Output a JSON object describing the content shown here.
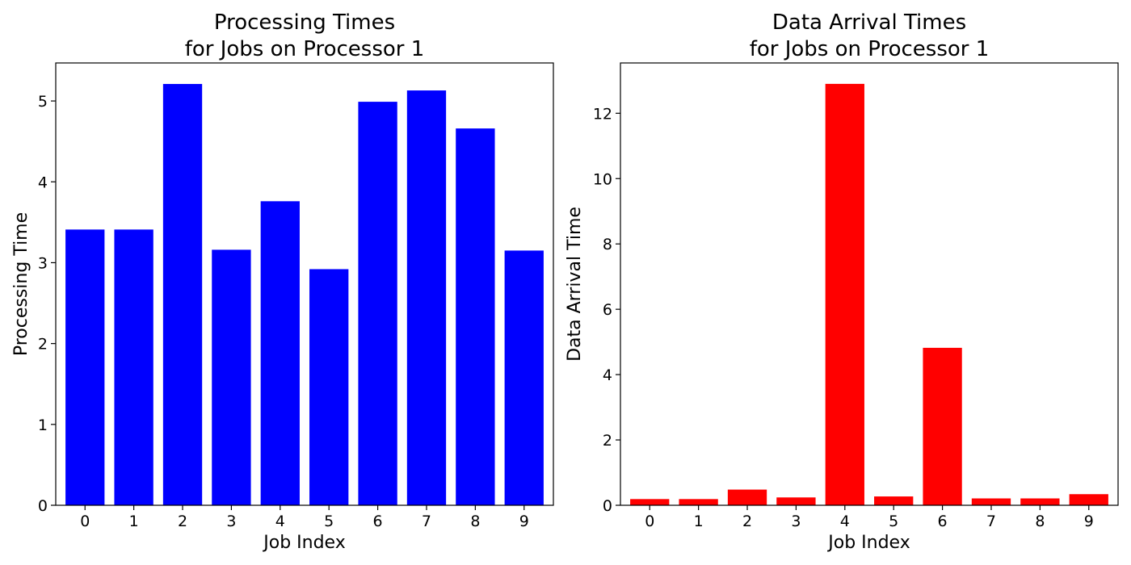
{
  "chart_data": [
    {
      "type": "bar",
      "title_lines": [
        "Processing Times",
        "for Jobs on Processor 1"
      ],
      "xlabel": "Job Index",
      "ylabel": "Processing Time",
      "categories": [
        "0",
        "1",
        "2",
        "3",
        "4",
        "5",
        "6",
        "7",
        "8",
        "9"
      ],
      "values": [
        3.41,
        3.41,
        5.21,
        3.16,
        3.76,
        2.92,
        4.99,
        5.13,
        4.66,
        3.15
      ],
      "ylim": [
        0,
        5.47
      ],
      "yticks": [
        0,
        1,
        2,
        3,
        4,
        5
      ],
      "ytick_labels": [
        "0",
        "1",
        "2",
        "3",
        "4",
        "5"
      ],
      "color": "#0000ff",
      "grid": false,
      "legend": false
    },
    {
      "type": "bar",
      "title_lines": [
        "Data Arrival Times",
        "for Jobs on Processor 1"
      ],
      "xlabel": "Job Index",
      "ylabel": "Data Arrival Time",
      "categories": [
        "0",
        "1",
        "2",
        "3",
        "4",
        "5",
        "6",
        "7",
        "8",
        "9"
      ],
      "values": [
        0.19,
        0.19,
        0.48,
        0.24,
        12.9,
        0.27,
        4.82,
        0.21,
        0.21,
        0.34
      ],
      "ylim": [
        0,
        13.54
      ],
      "yticks": [
        0,
        2,
        4,
        6,
        8,
        10,
        12
      ],
      "ytick_labels": [
        "0",
        "2",
        "4",
        "6",
        "8",
        "10",
        "12"
      ],
      "color": "#ff0000",
      "grid": false,
      "legend": false
    }
  ]
}
